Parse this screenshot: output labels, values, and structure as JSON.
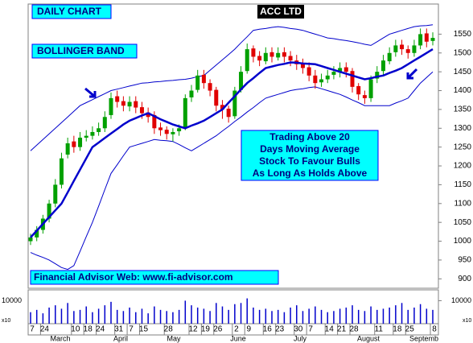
{
  "chart_data": {
    "type": "candlestick",
    "title": "ACC LTD",
    "labels": [
      "DAILY CHART",
      "BOLLINGER BAND"
    ],
    "annotation": [
      "Trading Above 20",
      "Days Moving Average",
      "Stock To Favour Bulls",
      "As Long As Holds Above"
    ],
    "footer": "Financial Advisor Web: www.fi-advisor.com",
    "categories": [
      "7",
      null,
      "24",
      null,
      null,
      null,
      null,
      "10",
      null,
      "18",
      null,
      "24",
      null,
      null,
      "31",
      null,
      "7",
      null,
      "15",
      null,
      null,
      null,
      "28",
      null,
      null,
      null,
      "12",
      null,
      "19",
      null,
      "26",
      null,
      null,
      "2",
      null,
      "9",
      null,
      null,
      "16",
      null,
      "23",
      null,
      null,
      "30",
      null,
      "7",
      null,
      null,
      "14",
      null,
      "21",
      null,
      "28",
      null,
      null,
      null,
      "11",
      null,
      null,
      "18",
      null,
      "25",
      null,
      null,
      null,
      "8"
    ],
    "months": [
      "March",
      "April",
      "May",
      "June",
      "July",
      "August",
      "Septemb"
    ],
    "open": [
      1000,
      1010,
      1030,
      1060,
      1100,
      1150,
      1230,
      1265,
      1250,
      1275,
      1280,
      1290,
      1300,
      1335,
      1385,
      1372,
      1358,
      1372,
      1356,
      1342,
      1335,
      1302,
      1296,
      1284,
      1292,
      1300,
      1382,
      1402,
      1442,
      1420,
      1402,
      1362,
      1352,
      1332,
      1402,
      1452,
      1512,
      1492,
      1478,
      1502,
      1488,
      1502,
      1492,
      1480,
      1472,
      1462,
      1440,
      1422,
      1430,
      1442,
      1448,
      1462,
      1452,
      1412,
      1388,
      1380,
      1432,
      1452,
      1478,
      1502,
      1522,
      1510,
      1500,
      1520,
      1552,
      1532
    ],
    "high": [
      1020,
      1040,
      1070,
      1110,
      1165,
      1235,
      1275,
      1280,
      1290,
      1295,
      1305,
      1315,
      1345,
      1395,
      1400,
      1385,
      1385,
      1385,
      1370,
      1355,
      1345,
      1315,
      1305,
      1300,
      1310,
      1390,
      1415,
      1455,
      1455,
      1430,
      1410,
      1375,
      1360,
      1410,
      1465,
      1525,
      1520,
      1505,
      1515,
      1515,
      1515,
      1515,
      1505,
      1495,
      1485,
      1475,
      1455,
      1445,
      1455,
      1465,
      1475,
      1475,
      1460,
      1420,
      1400,
      1440,
      1465,
      1495,
      1515,
      1535,
      1535,
      1520,
      1535,
      1565,
      1565,
      1555
    ],
    "low": [
      990,
      1000,
      1020,
      1050,
      1090,
      1140,
      1220,
      1235,
      1240,
      1265,
      1270,
      1280,
      1290,
      1325,
      1355,
      1345,
      1345,
      1340,
      1325,
      1315,
      1285,
      1280,
      1270,
      1265,
      1280,
      1295,
      1370,
      1395,
      1405,
      1385,
      1345,
      1325,
      1315,
      1325,
      1395,
      1445,
      1475,
      1465,
      1470,
      1475,
      1480,
      1475,
      1465,
      1455,
      1445,
      1425,
      1405,
      1410,
      1420,
      1430,
      1435,
      1435,
      1395,
      1375,
      1365,
      1370,
      1420,
      1440,
      1470,
      1490,
      1495,
      1485,
      1490,
      1510,
      1515,
      1520
    ],
    "close": [
      1010,
      1030,
      1060,
      1100,
      1150,
      1220,
      1260,
      1250,
      1275,
      1280,
      1290,
      1300,
      1330,
      1380,
      1370,
      1360,
      1370,
      1355,
      1340,
      1330,
      1300,
      1295,
      1285,
      1290,
      1300,
      1380,
      1400,
      1440,
      1420,
      1400,
      1360,
      1350,
      1330,
      1400,
      1450,
      1510,
      1490,
      1480,
      1500,
      1490,
      1500,
      1490,
      1480,
      1470,
      1460,
      1440,
      1420,
      1430,
      1440,
      1450,
      1460,
      1450,
      1410,
      1390,
      1380,
      1430,
      1450,
      1480,
      1500,
      1520,
      1510,
      1500,
      1520,
      1550,
      1530,
      1540
    ],
    "up_color": "#00a000",
    "down_color": "#e00000",
    "moving_average": {
      "color": "#0000cc",
      "values": [
        1010,
        1028,
        1046,
        1064,
        1082,
        1100,
        1130,
        1160,
        1190,
        1220,
        1250,
        1262,
        1274,
        1286,
        1298,
        1310,
        1320,
        1327,
        1334,
        1340,
        1332,
        1324,
        1317,
        1310,
        1305,
        1300,
        1307,
        1313,
        1320,
        1330,
        1340,
        1350,
        1368,
        1385,
        1403,
        1420,
        1433,
        1447,
        1460,
        1464,
        1468,
        1471,
        1475,
        1474,
        1472,
        1471,
        1470,
        1465,
        1460,
        1455,
        1450,
        1445,
        1440,
        1435,
        1430,
        1433,
        1437,
        1440,
        1447,
        1453,
        1460,
        1470,
        1480,
        1490,
        1500,
        1510
      ]
    },
    "upper_band": {
      "color": "#0000cc",
      "values": [
        1240,
        1255,
        1270,
        1285,
        1300,
        1315,
        1330,
        1345,
        1360,
        1368,
        1376,
        1384,
        1392,
        1400,
        1404,
        1408,
        1412,
        1416,
        1420,
        1421,
        1423,
        1424,
        1426,
        1427,
        1429,
        1430,
        1433,
        1437,
        1440,
        1454,
        1468,
        1482,
        1496,
        1510,
        1527,
        1543,
        1560,
        1563,
        1565,
        1568,
        1570,
        1568,
        1565,
        1563,
        1560,
        1555,
        1550,
        1545,
        1540,
        1538,
        1535,
        1533,
        1530,
        1527,
        1523,
        1520,
        1530,
        1540,
        1550,
        1555,
        1560,
        1565,
        1570,
        1572,
        1573,
        1575
      ]
    },
    "lower_band": {
      "color": "#0000cc",
      "values": [
        970,
        963,
        957,
        950,
        940,
        930,
        925,
        935,
        973,
        1012,
        1050,
        1093,
        1137,
        1180,
        1203,
        1227,
        1250,
        1255,
        1260,
        1265,
        1270,
        1268,
        1267,
        1265,
        1257,
        1248,
        1240,
        1250,
        1260,
        1270,
        1280,
        1293,
        1305,
        1318,
        1330,
        1343,
        1355,
        1368,
        1380,
        1385,
        1390,
        1395,
        1400,
        1403,
        1405,
        1408,
        1410,
        1405,
        1400,
        1395,
        1390,
        1383,
        1375,
        1368,
        1360,
        1360,
        1360,
        1360,
        1360,
        1367,
        1373,
        1380,
        1400,
        1420,
        1435,
        1450
      ]
    },
    "ylim": [
      875,
      1630
    ],
    "yticks": [
      900,
      950,
      1000,
      1050,
      1100,
      1150,
      1200,
      1250,
      1300,
      1350,
      1400,
      1450,
      1500,
      1550
    ],
    "volume": {
      "color": "#0000cc",
      "unit": "x10",
      "values": [
        5000,
        6000,
        4500,
        7000,
        8000,
        6500,
        9000,
        5500,
        6000,
        7500,
        5000,
        6500,
        8000,
        9500,
        6000,
        5500,
        7000,
        5000,
        6500,
        4500,
        7500,
        6000,
        5500,
        5000,
        6000,
        10000,
        8000,
        7000,
        6500,
        5500,
        9000,
        7500,
        6000,
        8500,
        9000,
        11000,
        7000,
        6000,
        6500,
        5500,
        6000,
        5000,
        7000,
        8000,
        5500,
        6500,
        7500,
        6000,
        5000,
        5500,
        6500,
        7000,
        8000,
        6000,
        5500,
        7500,
        6000,
        6500,
        7000,
        8000,
        9000,
        6000,
        7000,
        8500,
        6500,
        6000
      ]
    },
    "vlim": [
      0,
      14000
    ],
    "vticks": [
      10000
    ]
  }
}
